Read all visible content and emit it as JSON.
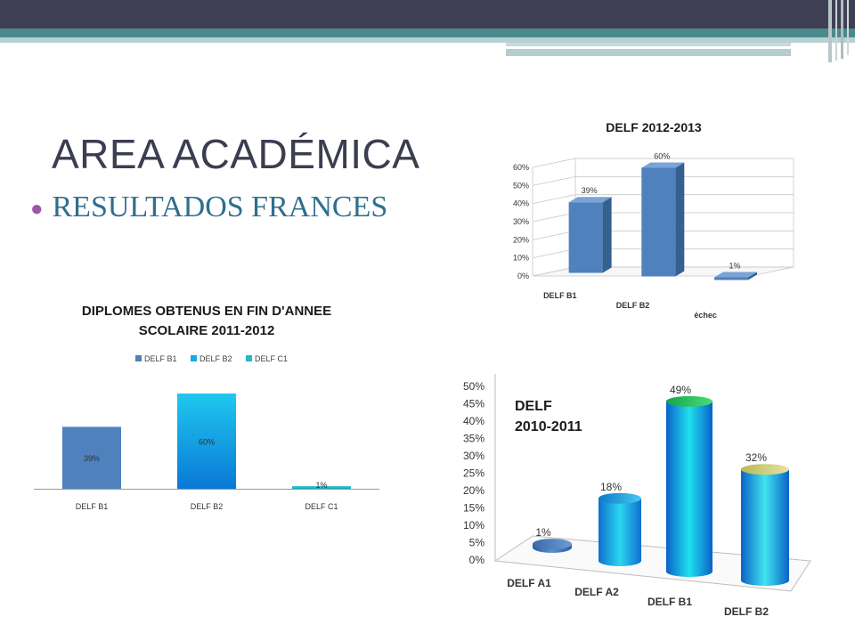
{
  "slide": {
    "title": "AREA ACADÉMICA",
    "subtitle": "RESULTADOS FRANCES"
  },
  "colors": {
    "top_bar": "#3f4053",
    "teal_band": "#4a8a8c",
    "title": "#3b3d50",
    "subtitle": "#2e6f8e",
    "bullet": "#9b57a8"
  },
  "chart_data": [
    {
      "type": "bar",
      "title": "DIPLOMES OBTENUS EN FIN D'ANNEE SCOLAIRE 2011-2012",
      "title_lines": [
        "DIPLOMES OBTENUS EN FIN D'ANNEE",
        "SCOLAIRE 2011-2012"
      ],
      "categories": [
        "DELF B1",
        "DELF B2",
        "DELF C1"
      ],
      "values": [
        39,
        60,
        1
      ],
      "data_labels": [
        "39%",
        "60%",
        "1%"
      ],
      "legend": [
        "DELF B1",
        "DELF B2",
        "DELF C1"
      ],
      "legend_position": "top",
      "colors": [
        "#4f81bd",
        "#1aa9e4",
        "#27b6c4"
      ],
      "ylim": [
        0,
        60
      ],
      "grid": false
    },
    {
      "type": "bar",
      "style": "3d",
      "title": "DELF 2012-2013",
      "categories": [
        "DELF B1",
        "DELF B2",
        "échec"
      ],
      "values": [
        39,
        60,
        1
      ],
      "data_labels": [
        "39%",
        "60%",
        "1%"
      ],
      "y_ticks": [
        "0%",
        "10%",
        "20%",
        "30%",
        "40%",
        "50%",
        "60%"
      ],
      "ylim": [
        0,
        60
      ],
      "grid": true,
      "colors": [
        "#4f81bd"
      ]
    },
    {
      "type": "bar",
      "style": "3d-cylinder",
      "title": "DELF 2010-2011",
      "title_lines": [
        "DELF",
        "2010-2011"
      ],
      "categories": [
        "DELF A1",
        "DELF A2",
        "DELF B1",
        "DELF B2"
      ],
      "values": [
        1,
        18,
        49,
        32
      ],
      "data_labels": [
        "1%",
        "18%",
        "49%",
        "32%"
      ],
      "y_ticks": [
        "0%",
        "5%",
        "10%",
        "15%",
        "20%",
        "25%",
        "30%",
        "35%",
        "40%",
        "45%",
        "50%"
      ],
      "ylim": [
        0,
        50
      ],
      "grid": false
    }
  ]
}
